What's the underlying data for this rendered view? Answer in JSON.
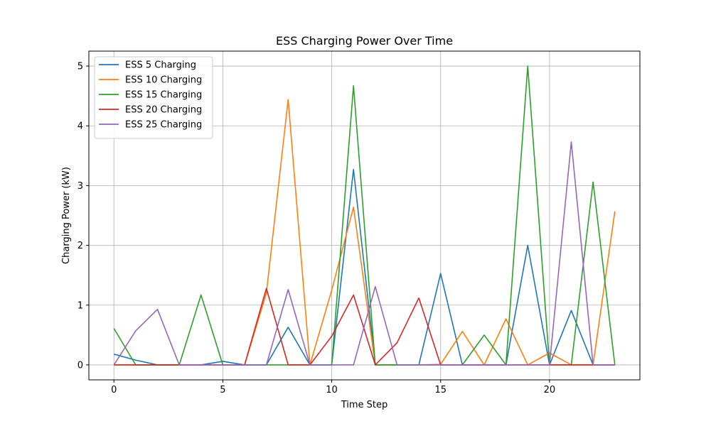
{
  "chart_data": {
    "type": "line",
    "title": "ESS Charging Power Over Time",
    "xlabel": "Time Step",
    "ylabel": "Charging Power (kW)",
    "xlim": [
      -1.15,
      24.15
    ],
    "ylim": [
      -0.25,
      5.25
    ],
    "xticks": [
      0,
      5,
      10,
      15,
      20
    ],
    "yticks": [
      0,
      1,
      2,
      3,
      4,
      5
    ],
    "grid": true,
    "legend_position": "top-left",
    "x": [
      0,
      1,
      2,
      3,
      4,
      5,
      6,
      7,
      8,
      9,
      10,
      11,
      12,
      13,
      14,
      15,
      16,
      17,
      18,
      19,
      20,
      21,
      22,
      23
    ],
    "series": [
      {
        "name": "ESS 5 Charging",
        "color": "#1f77b4",
        "values": [
          0.18,
          0.08,
          0,
          0,
          0,
          0.06,
          0,
          0,
          0.63,
          0,
          0,
          3.27,
          0,
          0,
          0,
          1.53,
          0,
          0,
          0,
          2.0,
          0,
          0.91,
          0,
          0
        ]
      },
      {
        "name": "ESS 10 Charging",
        "color": "#ff7f0e",
        "values": [
          0,
          0,
          0,
          0,
          0,
          0,
          0,
          1.2,
          4.44,
          0,
          1.25,
          2.64,
          0,
          0,
          0,
          0.01,
          0.56,
          0,
          0.77,
          0,
          0.2,
          0,
          0,
          2.57
        ]
      },
      {
        "name": "ESS 15 Charging",
        "color": "#2ca02c",
        "values": [
          0.61,
          0,
          0,
          0,
          1.17,
          0,
          0,
          0,
          0,
          0,
          0,
          4.67,
          0,
          0,
          0,
          0,
          0,
          0.5,
          0,
          5.0,
          0,
          0,
          3.06,
          0
        ]
      },
      {
        "name": "ESS 20 Charging",
        "color": "#d62728",
        "values": [
          0,
          0,
          0,
          0,
          0,
          0,
          0,
          1.28,
          0,
          0,
          0.48,
          1.17,
          0,
          0.37,
          1.12,
          0,
          0,
          0,
          0,
          0,
          0,
          0,
          0,
          0
        ]
      },
      {
        "name": "ESS 25 Charging",
        "color": "#9467bd",
        "values": [
          0,
          0.57,
          0.93,
          0,
          0,
          0,
          0,
          0,
          1.26,
          0,
          0,
          0,
          1.31,
          0,
          0,
          0,
          0,
          0,
          0,
          0,
          0,
          3.73,
          0,
          0
        ]
      }
    ]
  }
}
